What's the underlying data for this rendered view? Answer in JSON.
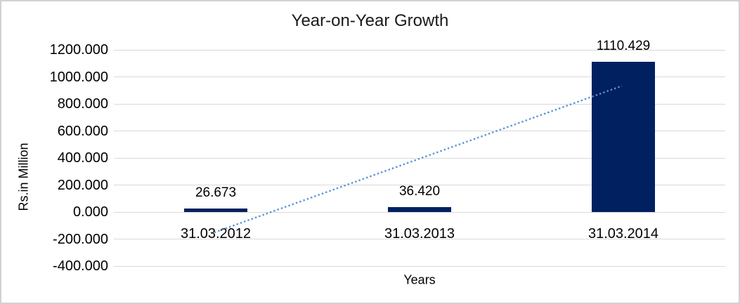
{
  "chart_data": {
    "type": "bar",
    "title": "Year-on-Year Growth",
    "xlabel": "Years",
    "ylabel": "Rs.in Million",
    "categories": [
      "31.03.2012",
      "31.03.2013",
      "31.03.2014"
    ],
    "values": [
      26.673,
      36.42,
      1110.429
    ],
    "data_labels": [
      "26.673",
      "36.420",
      "1110.429"
    ],
    "y_ticks": [
      "1200.000",
      "1000.000",
      "800.000",
      "600.000",
      "400.000",
      "200.000",
      "0.000",
      "-200.000",
      "-400.000"
    ],
    "y_tick_values": [
      1200,
      1000,
      800,
      600,
      400,
      200,
      0,
      -200,
      -400
    ],
    "ylim": [
      -400,
      1200
    ],
    "grid": true,
    "legend_position": "none",
    "bar_color": "#002060",
    "gridline_color": "#d9d9d9",
    "frame_border_color": "#d1d1d1",
    "trendline": {
      "type": "linear",
      "style": "dotted",
      "color": "#5b92d5",
      "start_value": -151,
      "end_value": 933
    }
  }
}
